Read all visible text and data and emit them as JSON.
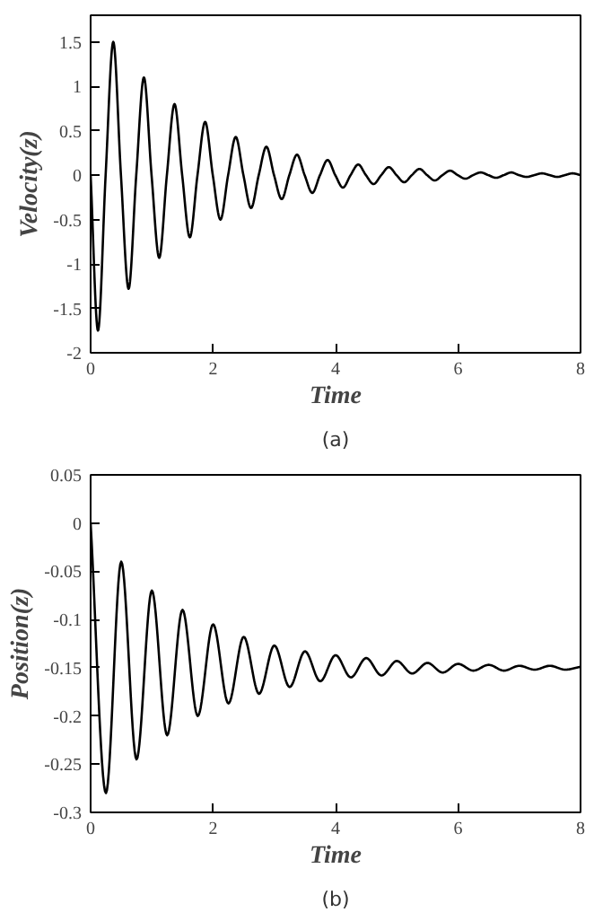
{
  "chart_data": [
    {
      "type": "line",
      "xlabel": "Time",
      "ylabel": "Velocity(z)",
      "annotations": [
        "(a)"
      ],
      "xlim": [
        0,
        8
      ],
      "ylim": [
        -2,
        1.8
      ],
      "xticks": [
        0,
        2,
        4,
        6,
        8
      ],
      "yticks": [
        -2,
        -1.5,
        -1,
        -0.5,
        0,
        0.5,
        1,
        1.5
      ],
      "series": [
        {
          "color": "#000000",
          "x": [
            0,
            0.12,
            0.245,
            0.37,
            0.495,
            0.62,
            0.745,
            0.87,
            0.995,
            1.12,
            1.245,
            1.37,
            1.495,
            1.62,
            1.745,
            1.87,
            1.995,
            2.12,
            2.245,
            2.37,
            2.495,
            2.62,
            2.745,
            2.87,
            2.995,
            3.12,
            3.245,
            3.37,
            3.495,
            3.62,
            3.745,
            3.87,
            3.995,
            4.12,
            4.245,
            4.37,
            4.495,
            4.62,
            4.745,
            4.87,
            4.995,
            5.12,
            5.245,
            5.37,
            5.495,
            5.62,
            5.745,
            5.87,
            5.995,
            6.12,
            6.245,
            6.37,
            6.495,
            6.62,
            6.745,
            6.87,
            6.995,
            7.12,
            7.245,
            7.37,
            7.495,
            7.62,
            7.745,
            7.87,
            8
          ],
          "values": [
            0,
            -1.75,
            0,
            1.5,
            0,
            -1.28,
            0,
            1.1,
            0,
            -0.93,
            0,
            0.8,
            0,
            -0.7,
            0,
            0.6,
            0,
            -0.5,
            0,
            0.43,
            0,
            -0.37,
            0,
            0.32,
            0,
            -0.27,
            0,
            0.23,
            0,
            -0.2,
            0,
            0.17,
            0,
            -0.14,
            0,
            0.12,
            0,
            -0.1,
            0,
            0.09,
            0,
            -0.08,
            0,
            0.07,
            0,
            -0.06,
            0,
            0.05,
            0,
            -0.04,
            0,
            0.03,
            0,
            -0.03,
            0,
            0.03,
            0,
            -0.02,
            0,
            0.02,
            0,
            -0.02,
            0,
            0.02,
            0
          ]
        }
      ]
    },
    {
      "type": "line",
      "xlabel": "Time",
      "ylabel": "Position(z)",
      "annotations": [
        "(b)"
      ],
      "xlim": [
        0,
        8
      ],
      "ylim": [
        -0.3,
        0.05
      ],
      "xticks": [
        0,
        2,
        4,
        6,
        8
      ],
      "yticks": [
        -0.3,
        -0.25,
        -0.2,
        -0.15,
        -0.1,
        -0.05,
        0,
        0.05
      ],
      "series": [
        {
          "color": "#000000",
          "x": [
            0,
            0.25,
            0.5,
            0.75,
            1,
            1.25,
            1.5,
            1.75,
            2,
            2.25,
            2.5,
            2.75,
            3,
            3.25,
            3.5,
            3.75,
            4,
            4.25,
            4.5,
            4.75,
            5,
            5.25,
            5.5,
            5.75,
            6,
            6.25,
            6.5,
            6.75,
            7,
            7.25,
            7.5,
            7.75,
            8
          ],
          "values": [
            0,
            -0.28,
            -0.04,
            -0.245,
            -0.07,
            -0.22,
            -0.09,
            -0.2,
            -0.105,
            -0.187,
            -0.118,
            -0.177,
            -0.127,
            -0.17,
            -0.133,
            -0.164,
            -0.137,
            -0.16,
            -0.14,
            -0.158,
            -0.143,
            -0.156,
            -0.145,
            -0.155,
            -0.146,
            -0.153,
            -0.147,
            -0.153,
            -0.148,
            -0.152,
            -0.148,
            -0.152,
            -0.149
          ]
        }
      ]
    }
  ]
}
